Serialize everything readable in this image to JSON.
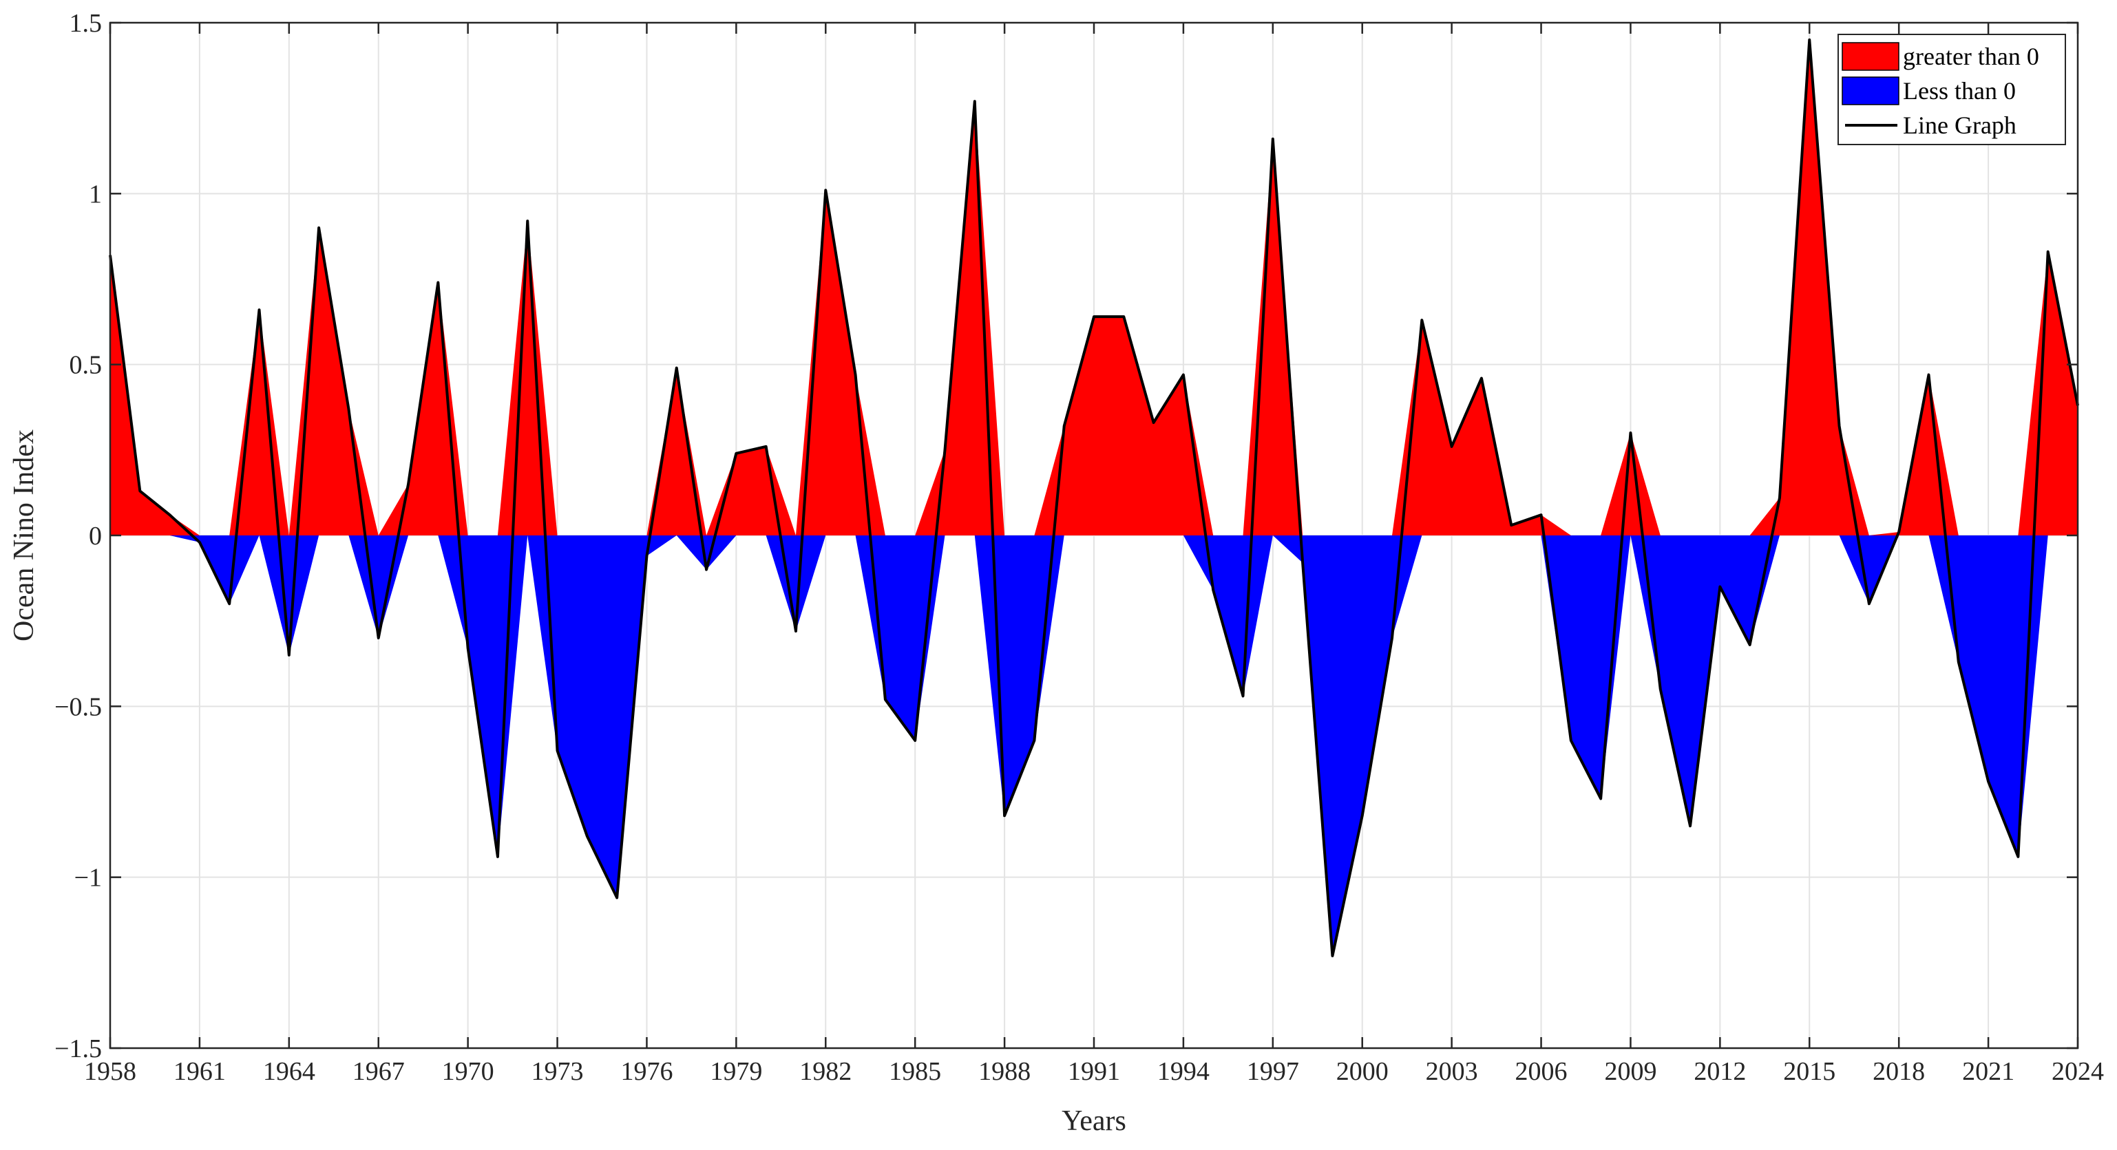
{
  "chart_data": {
    "type": "area",
    "xlabel": "Years",
    "ylabel": "Ocean Nino Index",
    "xlim": [
      1958,
      2024
    ],
    "ylim": [
      -1.5,
      1.5
    ],
    "x_ticks": [
      1958,
      1961,
      1964,
      1967,
      1970,
      1973,
      1976,
      1979,
      1982,
      1985,
      1988,
      1991,
      1994,
      1997,
      2000,
      2003,
      2006,
      2009,
      2012,
      2015,
      2018,
      2021,
      2024
    ],
    "y_ticks": [
      1.5,
      1,
      0.5,
      0,
      -0.5,
      -1,
      -1.5
    ],
    "y_tick_labels": [
      "1.5",
      "1",
      "0.5",
      "0",
      "−0.5",
      "−1",
      "−1.5"
    ],
    "grid": true,
    "legend_position": "top-right",
    "colors": {
      "positive": "#ff0000",
      "negative": "#0000ff",
      "line": "#000000"
    },
    "series": [
      {
        "name": "greater than 0",
        "kind": "fill-positive"
      },
      {
        "name": "Less than 0",
        "kind": "fill-negative"
      },
      {
        "name": "Line Graph",
        "kind": "line",
        "x": [
          1958,
          1959,
          1960,
          1961,
          1962,
          1963,
          1964,
          1965,
          1966,
          1967,
          1968,
          1969,
          1970,
          1971,
          1972,
          1973,
          1974,
          1975,
          1976,
          1977,
          1978,
          1979,
          1980,
          1981,
          1982,
          1983,
          1984,
          1985,
          1986,
          1987,
          1988,
          1989,
          1990,
          1991,
          1992,
          1993,
          1994,
          1995,
          1996,
          1997,
          1998,
          1999,
          2000,
          2001,
          2002,
          2003,
          2004,
          2005,
          2006,
          2007,
          2008,
          2009,
          2010,
          2011,
          2012,
          2013,
          2014,
          2015,
          2016,
          2017,
          2018,
          2019,
          2020,
          2021,
          2022,
          2023,
          2024
        ],
        "values": [
          0.82,
          0.13,
          0.06,
          -0.02,
          -0.2,
          0.66,
          -0.35,
          0.9,
          0.37,
          -0.3,
          0.15,
          0.74,
          -0.33,
          -0.94,
          0.92,
          -0.63,
          -0.88,
          -1.06,
          -0.06,
          0.49,
          -0.1,
          0.24,
          0.26,
          -0.28,
          1.01,
          0.47,
          -0.48,
          -0.6,
          0.25,
          1.27,
          -0.82,
          -0.6,
          0.32,
          0.64,
          0.64,
          0.33,
          0.47,
          -0.16,
          -0.47,
          1.16,
          -0.08,
          -1.23,
          -0.82,
          -0.3,
          0.63,
          0.26,
          0.46,
          0.03,
          0.06,
          -0.6,
          -0.77,
          0.3,
          -0.45,
          -0.85,
          -0.15,
          -0.32,
          0.11,
          1.45,
          0.32,
          -0.2,
          0.01,
          0.47,
          -0.37,
          -0.72,
          -0.94,
          0.83,
          0.38
        ]
      }
    ]
  }
}
